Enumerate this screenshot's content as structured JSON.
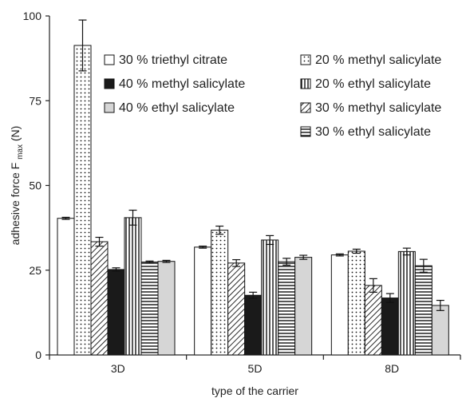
{
  "chart_data": {
    "type": "bar",
    "title": "",
    "xlabel": "type of the carrier",
    "ylabel": "adhesive force F",
    "ylabel_subscript": "max",
    "ylabel_unit": "(N)",
    "ylim": [
      0,
      100
    ],
    "yticks": [
      0,
      25,
      50,
      75,
      100
    ],
    "grid": false,
    "legend_position": "top-right",
    "categories": [
      "3D",
      "5D",
      "8D"
    ],
    "series": [
      {
        "name": "30 % triethyl citrate",
        "pattern": "white",
        "values": [
          40.3,
          31.8,
          29.5
        ],
        "errors": [
          0.3,
          0.3,
          0.3
        ]
      },
      {
        "name": "20 % methyl salicylate",
        "pattern": "dots",
        "values": [
          91.3,
          36.8,
          30.6
        ],
        "errors": [
          7.5,
          1.2,
          0.6
        ]
      },
      {
        "name": "30 % methyl salicylate",
        "pattern": "diagonal",
        "values": [
          33.4,
          27.1,
          20.5
        ],
        "errors": [
          1.3,
          1.0,
          2.0
        ]
      },
      {
        "name": "40 % methyl salicylate",
        "pattern": "black",
        "values": [
          25.2,
          17.6,
          16.8
        ],
        "errors": [
          0.5,
          0.9,
          1.3
        ]
      },
      {
        "name": "20 % ethyl salicylate",
        "pattern": "vertical",
        "values": [
          40.5,
          33.9,
          30.5
        ],
        "errors": [
          2.2,
          1.3,
          1.0
        ]
      },
      {
        "name": "30 % ethyl salicylate",
        "pattern": "horizontal",
        "values": [
          27.4,
          27.5,
          26.3
        ],
        "errors": [
          0.3,
          1.0,
          1.9
        ]
      },
      {
        "name": "40 % ethyl salicylate",
        "pattern": "grey",
        "values": [
          27.6,
          28.8,
          14.6
        ],
        "errors": [
          0.3,
          0.6,
          1.5
        ]
      }
    ],
    "legend": {
      "left": [
        "30 % triethyl citrate",
        "40 % methyl salicylate",
        "40 % ethyl salicylate"
      ],
      "right": [
        "20 % methyl salicylate",
        "20 % ethyl salicylate",
        "30 % methyl salicylate",
        "30 % ethyl salicylate"
      ]
    },
    "colors": {
      "bar_stroke": "#111111",
      "black_fill": "#1a1a1a",
      "grey_fill": "#d6d6d6",
      "axis": "#222222"
    }
  }
}
